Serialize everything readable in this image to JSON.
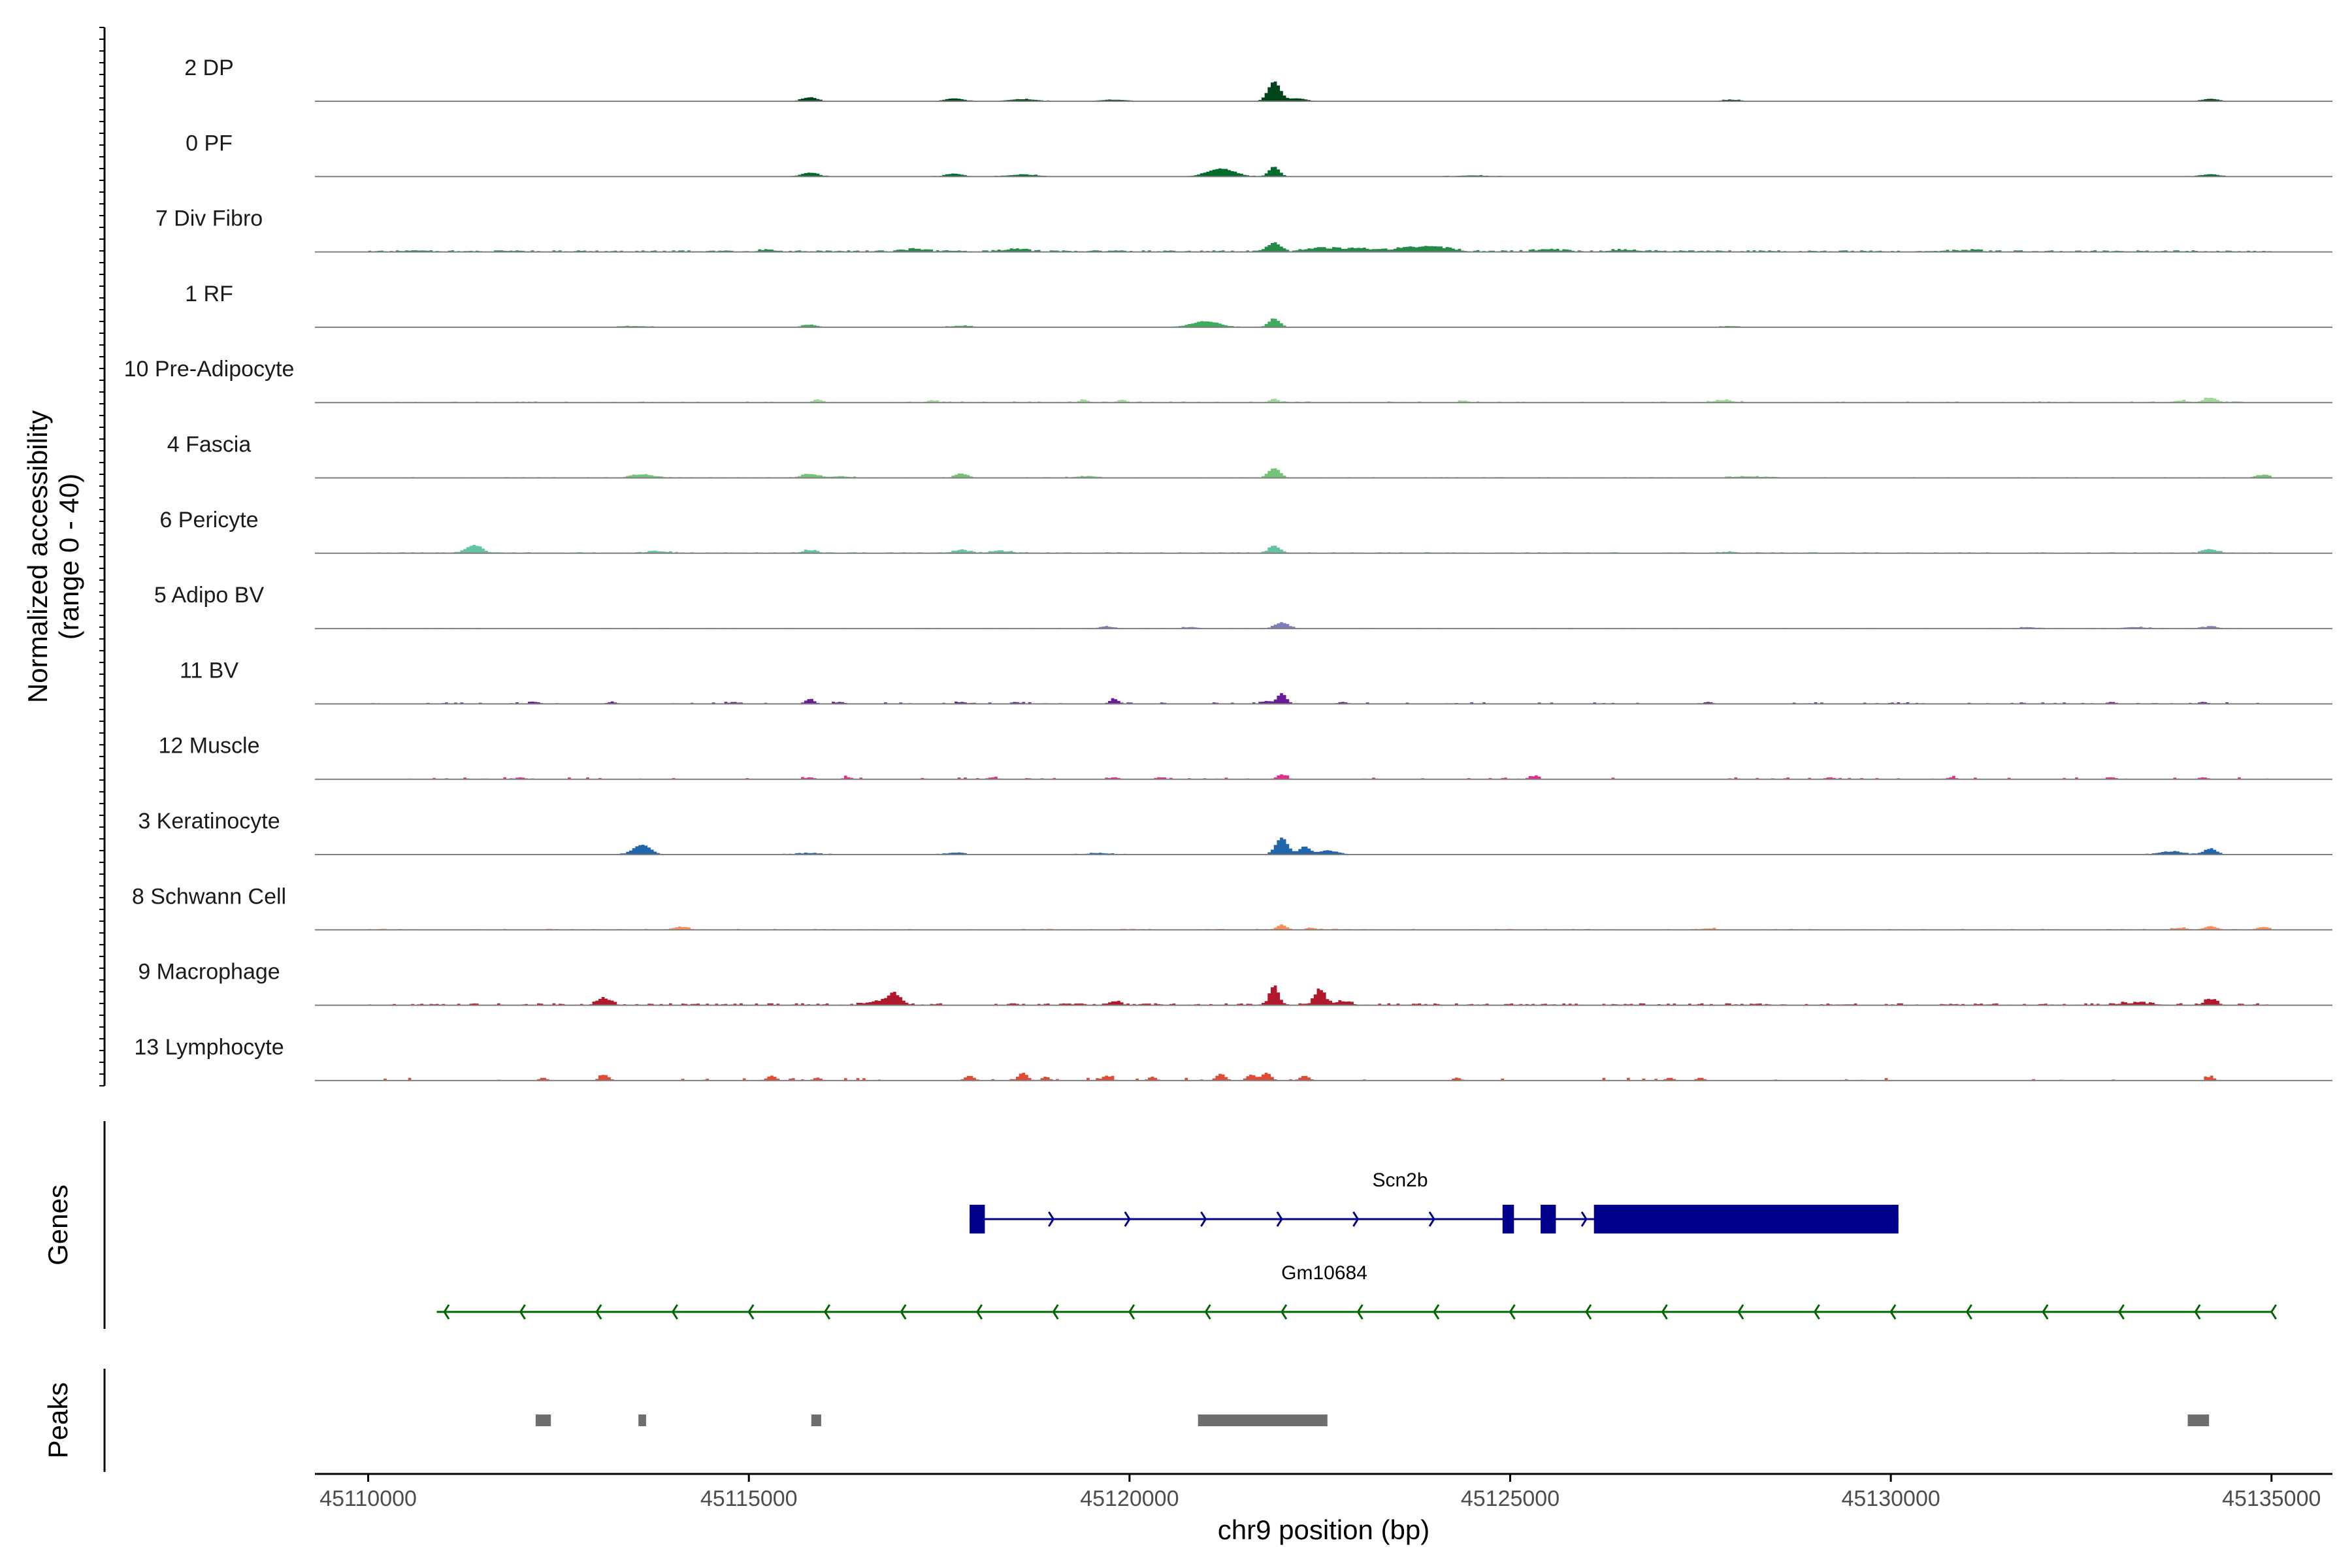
{
  "chart_data": {
    "type": "area",
    "title": "",
    "chromosome": "chr9",
    "xlabel": "chr9 position (bp)",
    "ylabel": "Normalized accessibility",
    "ylabel_range": "(range 0 - 40)",
    "xlim": [
      45109300,
      45135800
    ],
    "ylim": [
      0,
      40
    ],
    "x_ticks": [
      45110000,
      45115000,
      45120000,
      45125000,
      45130000,
      45135000
    ],
    "x_tick_labels": [
      "45110000",
      "45115000",
      "45120000",
      "45125000",
      "45130000",
      "45135000"
    ],
    "panel_labels": {
      "genes": "Genes",
      "peaks": "Peaks"
    },
    "region": [
      45110000,
      45135000
    ],
    "tracks": [
      {
        "name": "2 DP",
        "color": "#00441b",
        "noise": 0.4,
        "density": 0.25,
        "seed": 11,
        "peaks": [
          [
            45115800,
            4,
            100
          ],
          [
            45117700,
            3,
            120
          ],
          [
            45118600,
            2,
            200
          ],
          [
            45119800,
            1.5,
            200
          ],
          [
            45121900,
            20,
            80
          ],
          [
            45122200,
            3,
            120
          ],
          [
            45127900,
            1.5,
            120
          ],
          [
            45134200,
            2.5,
            110
          ]
        ]
      },
      {
        "name": "0 PF",
        "color": "#006d2c",
        "noise": 0.4,
        "density": 0.3,
        "seed": 23,
        "peaks": [
          [
            45115800,
            4,
            110
          ],
          [
            45117700,
            3,
            110
          ],
          [
            45118600,
            2,
            200
          ],
          [
            45121200,
            8,
            180
          ],
          [
            45121900,
            10,
            70
          ],
          [
            45124500,
            1.2,
            200
          ],
          [
            45134200,
            2.5,
            110
          ]
        ]
      },
      {
        "name": "7 Div Fibro",
        "color": "#238b45",
        "noise": 1.2,
        "density": 0.7,
        "seed": 37,
        "peaks": [
          [
            45115200,
            2,
            80
          ],
          [
            45117200,
            2.5,
            150
          ],
          [
            45118500,
            3,
            150
          ],
          [
            45121900,
            9,
            80
          ],
          [
            45122500,
            3,
            200
          ],
          [
            45123000,
            3,
            250
          ],
          [
            45123700,
            4,
            200
          ],
          [
            45124100,
            3.5,
            200
          ],
          [
            45125500,
            2,
            200
          ],
          [
            45126500,
            2,
            200
          ],
          [
            45131000,
            1.5,
            200
          ]
        ]
      },
      {
        "name": "1 RF",
        "color": "#41ab5d",
        "noise": 0.4,
        "density": 0.35,
        "seed": 41,
        "peaks": [
          [
            45113500,
            1.2,
            200
          ],
          [
            45115800,
            2.5,
            100
          ],
          [
            45117800,
            1.5,
            150
          ],
          [
            45121000,
            6,
            180
          ],
          [
            45121900,
            9,
            70
          ],
          [
            45127900,
            1.2,
            120
          ]
        ]
      },
      {
        "name": "10 Pre-Adipocyte",
        "color": "#a1d99b",
        "noise": 1.0,
        "density": 0.22,
        "seed": 53,
        "peaks": [
          [
            45115900,
            3.5,
            60
          ],
          [
            45117400,
            2.5,
            60
          ],
          [
            45119400,
            3,
            60
          ],
          [
            45119900,
            3,
            60
          ],
          [
            45121900,
            4,
            60
          ],
          [
            45124400,
            2,
            60
          ],
          [
            45127800,
            2.5,
            120
          ],
          [
            45134200,
            5,
            90
          ],
          [
            45133800,
            2,
            100
          ]
        ]
      },
      {
        "name": "4 Fascia",
        "color": "#74c476",
        "noise": 0.6,
        "density": 0.4,
        "seed": 67,
        "peaks": [
          [
            45113600,
            3.5,
            150
          ],
          [
            45115800,
            4,
            110
          ],
          [
            45116200,
            1.5,
            150
          ],
          [
            45117800,
            4,
            90
          ],
          [
            45121900,
            10,
            80
          ],
          [
            45119400,
            1.5,
            150
          ],
          [
            45128100,
            1.5,
            200
          ],
          [
            45134900,
            3,
            90
          ]
        ]
      },
      {
        "name": "6 Pericyte",
        "color": "#66c2a4",
        "noise": 0.8,
        "density": 0.55,
        "seed": 79,
        "peaks": [
          [
            45111400,
            8,
            100
          ],
          [
            45113800,
            2,
            150
          ],
          [
            45115800,
            3,
            100
          ],
          [
            45117800,
            3,
            100
          ],
          [
            45118300,
            2,
            150
          ],
          [
            45121900,
            8,
            70
          ],
          [
            45127900,
            1.5,
            100
          ],
          [
            45134200,
            4,
            90
          ]
        ]
      },
      {
        "name": "5 Adipo BV",
        "color": "#807dba",
        "noise": 0.5,
        "density": 0.3,
        "seed": 83,
        "peaks": [
          [
            45119700,
            2,
            100
          ],
          [
            45120800,
            1.5,
            100
          ],
          [
            45122000,
            6,
            90
          ],
          [
            45131800,
            1.5,
            100
          ],
          [
            45133200,
            1.5,
            150
          ],
          [
            45134200,
            2,
            100
          ]
        ]
      },
      {
        "name": "11 BV",
        "color": "#6a1b9a",
        "noise": 1.2,
        "density": 0.14,
        "seed": 97,
        "peaks": [
          [
            45112200,
            2,
            60
          ],
          [
            45113200,
            2,
            60
          ],
          [
            45114800,
            2,
            60
          ],
          [
            45115800,
            5,
            60
          ],
          [
            45116200,
            2,
            60
          ],
          [
            45117800,
            2,
            60
          ],
          [
            45118500,
            2,
            60
          ],
          [
            45119800,
            5,
            60
          ],
          [
            45121800,
            3,
            60
          ],
          [
            45122000,
            11,
            60
          ],
          [
            45122800,
            2,
            60
          ],
          [
            45127600,
            2,
            60
          ],
          [
            45132900,
            2,
            60
          ],
          [
            45134100,
            2,
            60
          ]
        ]
      },
      {
        "name": "12 Muscle",
        "color": "#e7298a",
        "noise": 1.4,
        "density": 0.14,
        "seed": 101,
        "peaks": [
          [
            45112000,
            2,
            60
          ],
          [
            45115800,
            2,
            60
          ],
          [
            45116300,
            2,
            60
          ],
          [
            45118200,
            2,
            60
          ],
          [
            45119800,
            2,
            60
          ],
          [
            45120400,
            2,
            60
          ],
          [
            45122000,
            5,
            60
          ],
          [
            45125300,
            3,
            60
          ],
          [
            45129200,
            2,
            60
          ],
          [
            45130800,
            2,
            60
          ],
          [
            45132900,
            2,
            60
          ],
          [
            45134100,
            2,
            60
          ]
        ]
      },
      {
        "name": "3 Keratinocyte",
        "color": "#2166ac",
        "noise": 0.5,
        "density": 0.45,
        "seed": 113,
        "peaks": [
          [
            45113600,
            10,
            110
          ],
          [
            45115800,
            1.5,
            150
          ],
          [
            45117700,
            2,
            100
          ],
          [
            45119600,
            1.5,
            150
          ],
          [
            45122000,
            17,
            80
          ],
          [
            45122300,
            8,
            70
          ],
          [
            45122600,
            4,
            120
          ],
          [
            45133700,
            3,
            150
          ],
          [
            45134200,
            6,
            80
          ]
        ]
      },
      {
        "name": "8 Schwann Cell",
        "color": "#fc8d59",
        "noise": 0.8,
        "density": 0.3,
        "seed": 127,
        "peaks": [
          [
            45114100,
            3,
            100
          ],
          [
            45122000,
            5,
            70
          ],
          [
            45122400,
            2,
            60
          ],
          [
            45127600,
            1.5,
            100
          ],
          [
            45134200,
            3.5,
            90
          ],
          [
            45134900,
            3,
            90
          ],
          [
            45133800,
            2,
            100
          ]
        ]
      },
      {
        "name": "9 Macrophage",
        "color": "#b2182b",
        "noise": 1.4,
        "density": 0.45,
        "seed": 131,
        "peaks": [
          [
            45113100,
            7,
            90
          ],
          [
            45116900,
            12,
            100
          ],
          [
            45116600,
            3,
            100
          ],
          [
            45119800,
            4,
            80
          ],
          [
            45121900,
            20,
            60
          ],
          [
            45122500,
            16,
            70
          ],
          [
            45122800,
            4,
            100
          ],
          [
            45133200,
            2,
            250
          ],
          [
            45134200,
            6,
            80
          ]
        ]
      },
      {
        "name": "13 Lymphocyte",
        "color": "#e34a33",
        "noise": 2.0,
        "density": 0.08,
        "seed": 149,
        "peaks": [
          [
            45112300,
            3,
            50
          ],
          [
            45113100,
            6,
            60
          ],
          [
            45115300,
            5,
            60
          ],
          [
            45115900,
            3,
            50
          ],
          [
            45117900,
            5,
            60
          ],
          [
            45118600,
            8,
            60
          ],
          [
            45118900,
            4,
            50
          ],
          [
            45119700,
            5,
            60
          ],
          [
            45120300,
            4,
            50
          ],
          [
            45121200,
            7,
            60
          ],
          [
            45121600,
            6,
            60
          ],
          [
            45121800,
            8,
            60
          ],
          [
            45122300,
            5,
            60
          ],
          [
            45124300,
            3,
            50
          ],
          [
            45127100,
            3,
            50
          ],
          [
            45127500,
            3,
            50
          ],
          [
            45134200,
            4,
            50
          ]
        ]
      }
    ],
    "genes": [
      {
        "name": "Scn2b",
        "strand": "+",
        "start": 45117900,
        "end": 45130100,
        "color": "#00008b",
        "exons": [
          [
            45117900,
            45118100
          ],
          [
            45124900,
            45125050
          ],
          [
            45125400,
            45125600
          ],
          [
            45126100,
            45130100
          ]
        ]
      },
      {
        "name": "Gm10684",
        "strand": "-",
        "start": 45110900,
        "end": 45135000,
        "color": "#006400",
        "exons": []
      }
    ],
    "peaks": [
      {
        "start": 45112200,
        "end": 45112400
      },
      {
        "start": 45113550,
        "end": 45113650
      },
      {
        "start": 45115820,
        "end": 45115950
      },
      {
        "start": 45120900,
        "end": 45122600
      },
      {
        "start": 45133900,
        "end": 45134180
      }
    ],
    "peak_color": "#6e6e6e"
  }
}
